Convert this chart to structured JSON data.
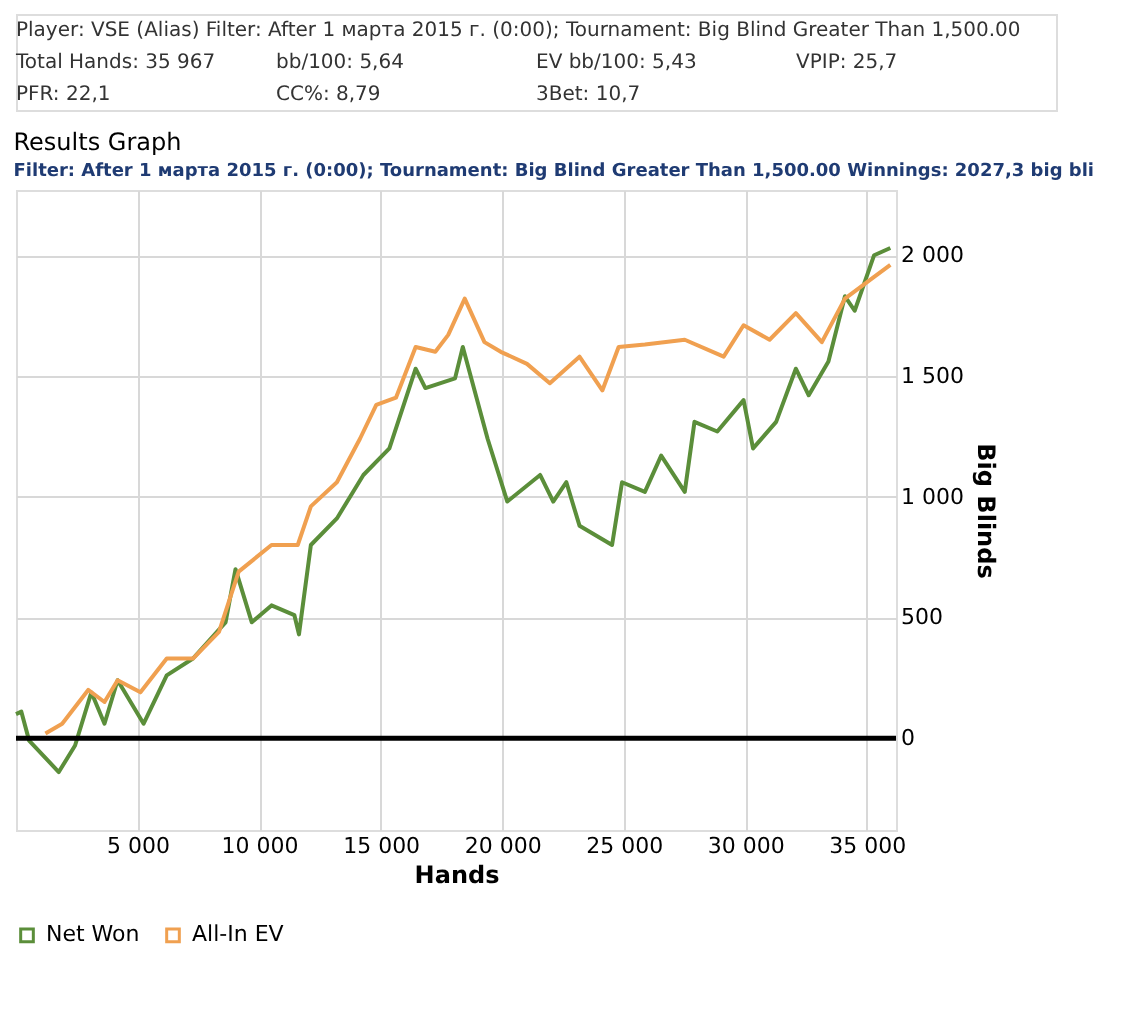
{
  "chart_data": {
    "type": "line",
    "title": "Results Graph",
    "subtitle": "Filter: After 1 марта 2015 г. (0:00); Tournament: Big Blind Greater Than 1,500.00 Winnings: 2027,3 big bli",
    "xlabel": "Hands",
    "ylabel": "Big Blinds",
    "annotations": [
      "Player: VSE (Alias)  Filter: After 1 марта 2015 г. (0:00); Tournament: Big Blind Greater Than 1,500.00",
      "Total Hands: 35 967",
      "bb/100: 5,64",
      "EV bb/100: 5,43",
      "VPIP: 25,7",
      "PFR: 22,1",
      "CC%: 8,79",
      "3Bet: 10,7"
    ],
    "xlim": [
      0,
      36200
    ],
    "ylim": [
      -380,
      2270
    ],
    "xticks": [
      {
        "value": 5000,
        "label": "5 000"
      },
      {
        "value": 10000,
        "label": "10 000"
      },
      {
        "value": 15000,
        "label": "15 000"
      },
      {
        "value": 20000,
        "label": "20 000"
      },
      {
        "value": 25000,
        "label": "25 000"
      },
      {
        "value": 30000,
        "label": "30 000"
      },
      {
        "value": 35000,
        "label": "35 000"
      }
    ],
    "yticks": [
      0,
      500,
      {
        "value": 1000,
        "label": "1 000"
      },
      {
        "value": 1500,
        "label": "1 500"
      },
      {
        "value": 2000,
        "label": "2 000"
      }
    ],
    "grid": true,
    "legend": "bottom",
    "line_style": "solid",
    "ref_lines": [
      {
        "axis": "y",
        "value": 0,
        "color": "#000000"
      }
    ],
    "series": [
      {
        "name": "Net Won",
        "color": "#5b8e3a",
        "x": [
          0,
          220,
          540,
          1760,
          2430,
          3100,
          3640,
          4180,
          5250,
          6200,
          7280,
          8620,
          9030,
          9700,
          10510,
          11450,
          11640,
          12130,
          13200,
          14290,
          15360,
          16440,
          16840,
          18060,
          18380,
          19400,
          20210,
          21560,
          22100,
          22640,
          23180,
          24520,
          24930,
          25870,
          26540,
          27510,
          27910,
          28850,
          29930,
          30320,
          31270,
          32080,
          32610,
          33420,
          34100,
          34500,
          35300,
          35967
        ],
        "values": [
          100,
          110,
          -10,
          -140,
          -30,
          190,
          60,
          240,
          60,
          260,
          330,
          480,
          700,
          480,
          550,
          510,
          430,
          800,
          910,
          1090,
          1200,
          1530,
          1450,
          1490,
          1620,
          1240,
          980,
          1090,
          980,
          1060,
          880,
          800,
          1060,
          1020,
          1170,
          1020,
          1310,
          1270,
          1400,
          1200,
          1310,
          1530,
          1420,
          1560,
          1830,
          1770,
          2000,
          2030
        ]
      },
      {
        "name": "All-In EV",
        "color": "#f0a050",
        "x": [
          1210,
          1900,
          2970,
          3640,
          4180,
          5120,
          6200,
          7280,
          8350,
          9160,
          10510,
          11590,
          12130,
          13200,
          14150,
          14820,
          15630,
          16440,
          17250,
          17780,
          18460,
          19270,
          19940,
          21020,
          21960,
          23180,
          24120,
          24790,
          25870,
          27510,
          29110,
          29930,
          31000,
          32080,
          33150,
          34100,
          35300,
          35967
        ],
        "values": [
          20,
          60,
          200,
          150,
          240,
          190,
          330,
          330,
          440,
          690,
          800,
          800,
          960,
          1060,
          1240,
          1380,
          1410,
          1620,
          1600,
          1670,
          1820,
          1640,
          1600,
          1550,
          1470,
          1580,
          1440,
          1620,
          1630,
          1650,
          1580,
          1710,
          1650,
          1760,
          1640,
          1820,
          1910,
          1960
        ]
      }
    ]
  }
}
